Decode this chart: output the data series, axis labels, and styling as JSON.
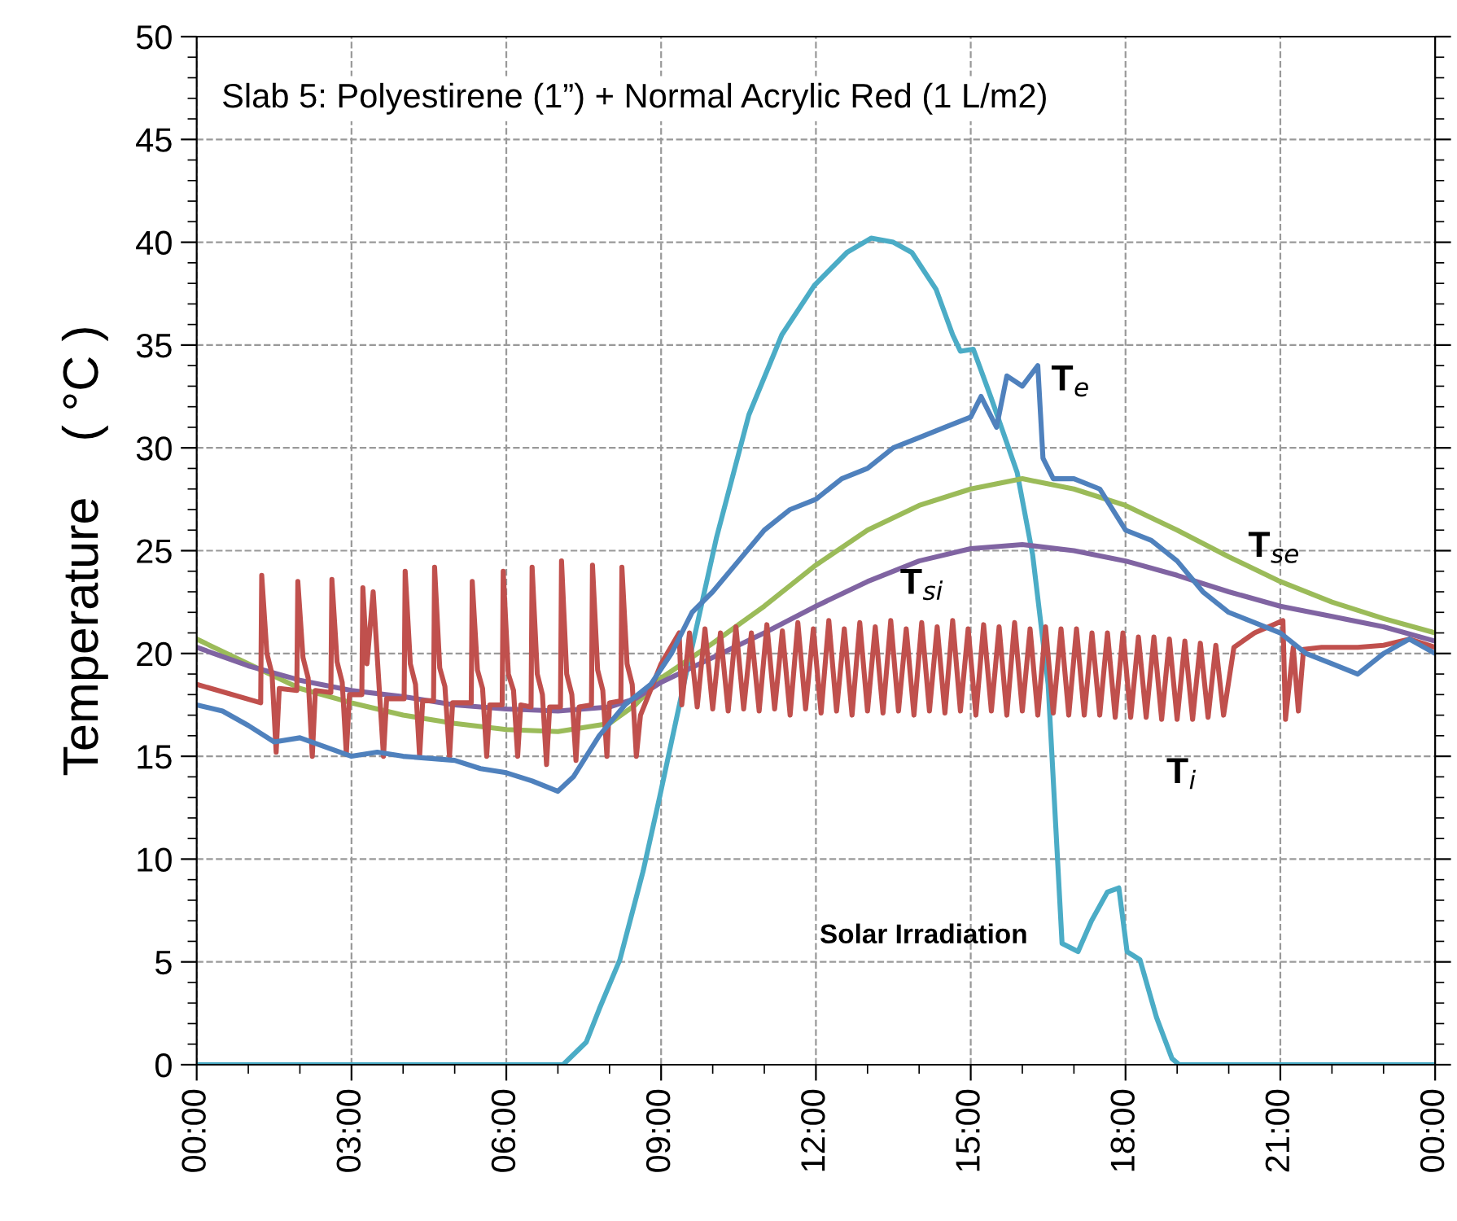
{
  "chart_data": {
    "type": "line",
    "title": "Slab 5: Polyestirene (1”) + Normal Acrylic Red (1 L/m2)",
    "ylabel": "Temperature    ( °C )",
    "xlim": [
      0,
      24
    ],
    "ylim": [
      0,
      50
    ],
    "yticks": [
      0,
      5,
      10,
      15,
      20,
      25,
      30,
      35,
      40,
      45,
      50
    ],
    "xticks": [
      {
        "value": 0,
        "label": "00:00"
      },
      {
        "value": 3,
        "label": "03:00"
      },
      {
        "value": 6,
        "label": "06:00"
      },
      {
        "value": 9,
        "label": "09:00"
      },
      {
        "value": 12,
        "label": "12:00"
      },
      {
        "value": 15,
        "label": "15:00"
      },
      {
        "value": 18,
        "label": "18:00"
      },
      {
        "value": 21,
        "label": "21:00"
      },
      {
        "value": 24,
        "label": "00:00"
      }
    ],
    "grid": true,
    "legend": false,
    "marker": "none",
    "line_style": "solid",
    "series": [
      {
        "color": "#4bacc6",
        "x": [
          0,
          7.1,
          7.55,
          7.8,
          8.2,
          8.65,
          8.97,
          9.44,
          10.07,
          10.7,
          11.34,
          11.97,
          12.6,
          13.07,
          13.5,
          13.86,
          14.33,
          14.65,
          14.8,
          15.05,
          15.4,
          15.9,
          16.2,
          16.5,
          16.77,
          17.08,
          17.34,
          17.65,
          17.87,
          18.03,
          18.28,
          18.6,
          18.9,
          19.04,
          24
        ],
        "values": [
          0,
          0,
          1.1,
          2.7,
          5.1,
          9.4,
          13.0,
          18.5,
          25.6,
          31.6,
          35.5,
          37.9,
          39.5,
          40.2,
          40.0,
          39.5,
          37.7,
          35.5,
          34.7,
          34.8,
          32.4,
          28.8,
          24.8,
          18.5,
          5.9,
          5.5,
          7.0,
          8.4,
          8.6,
          5.5,
          5.1,
          2.3,
          0.3,
          0,
          0
        ]
      },
      {
        "color": "#9bbb59",
        "x": [
          0,
          1,
          2,
          3,
          4,
          5,
          6,
          7,
          8,
          8.5,
          9,
          10,
          11,
          12,
          13,
          14,
          15,
          16,
          17,
          18,
          19,
          20,
          21,
          22,
          23,
          24
        ],
        "values": [
          20.7,
          19.5,
          18.3,
          17.6,
          17.0,
          16.6,
          16.3,
          16.2,
          16.6,
          17.5,
          18.8,
          20.5,
          22.3,
          24.3,
          26.0,
          27.2,
          28.0,
          28.5,
          28.0,
          27.2,
          26.0,
          24.7,
          23.5,
          22.5,
          21.7,
          21.0
        ]
      },
      {
        "color": "#8064a2",
        "x": [
          0,
          1,
          2,
          3,
          4,
          5,
          6,
          7,
          8,
          8.5,
          9,
          10,
          11,
          12,
          13,
          14,
          15,
          16,
          17,
          18,
          19,
          20,
          21,
          22,
          23,
          24
        ],
        "values": [
          20.3,
          19.4,
          18.7,
          18.2,
          17.9,
          17.5,
          17.3,
          17.2,
          17.4,
          17.8,
          18.6,
          19.8,
          21.0,
          22.3,
          23.5,
          24.5,
          25.1,
          25.3,
          25.0,
          24.5,
          23.8,
          23.0,
          22.3,
          21.8,
          21.3,
          20.6
        ]
      },
      {
        "color": "#c0504d",
        "x": [
          0,
          1.24,
          1.26,
          1.36,
          1.46,
          1.54,
          1.6,
          1.94,
          1.96,
          2.06,
          2.16,
          2.24,
          2.3,
          2.6,
          2.62,
          2.72,
          2.82,
          2.9,
          2.96,
          3.2,
          3.22,
          3.3,
          3.42,
          3.52,
          3.62,
          3.68,
          4.02,
          4.04,
          4.14,
          4.24,
          4.32,
          4.38,
          4.59,
          4.61,
          4.71,
          4.81,
          4.9,
          4.96,
          5.32,
          5.34,
          5.44,
          5.54,
          5.62,
          5.68,
          5.92,
          5.94,
          6.04,
          6.14,
          6.22,
          6.28,
          6.48,
          6.5,
          6.6,
          6.7,
          6.78,
          6.84,
          7.05,
          7.07,
          7.17,
          7.27,
          7.35,
          7.41,
          7.65,
          7.67,
          7.77,
          7.87,
          7.95,
          8.0,
          8.22,
          8.24,
          8.34,
          8.44,
          8.52,
          8.6,
          9.0,
          9.35,
          9.4,
          9.55,
          9.7,
          9.85,
          10.0,
          10.15,
          10.3,
          10.45,
          10.6,
          10.75,
          10.9,
          11.05,
          11.2,
          11.35,
          11.5,
          11.65,
          11.8,
          11.95,
          12.1,
          12.25,
          12.4,
          12.55,
          12.7,
          12.85,
          13.0,
          13.15,
          13.3,
          13.45,
          13.6,
          13.75,
          13.9,
          14.05,
          14.2,
          14.35,
          14.5,
          14.65,
          14.8,
          14.95,
          15.1,
          15.25,
          15.4,
          15.55,
          15.7,
          15.85,
          16.0,
          16.15,
          16.3,
          16.45,
          16.6,
          16.75,
          16.9,
          17.05,
          17.2,
          17.35,
          17.5,
          17.65,
          17.8,
          17.95,
          18.1,
          18.25,
          18.4,
          18.55,
          18.7,
          18.85,
          19.0,
          19.15,
          19.3,
          19.45,
          19.6,
          19.75,
          19.9,
          20.1,
          20.5,
          21.05,
          21.1,
          21.25,
          21.35,
          21.45,
          21.8,
          22.5,
          23.0,
          23.5,
          24.0
        ],
        "values": [
          18.5,
          17.6,
          23.8,
          20,
          19,
          15.2,
          18.3,
          18.2,
          23.5,
          19.8,
          18.8,
          15.0,
          18.2,
          18.1,
          23.6,
          19.6,
          18.6,
          15.1,
          18.0,
          18.0,
          23.2,
          19.5,
          23.0,
          19.0,
          15.0,
          17.8,
          17.8,
          24.0,
          19.5,
          18.5,
          15.0,
          17.7,
          17.7,
          24.2,
          19.3,
          18.4,
          15.0,
          17.6,
          17.6,
          23.5,
          19.2,
          18.3,
          15.0,
          17.5,
          17.5,
          24.0,
          19.0,
          18.2,
          15.0,
          17.5,
          17.4,
          24.2,
          19.0,
          18.0,
          14.6,
          17.4,
          17.4,
          24.5,
          19.0,
          18.0,
          14.8,
          17.4,
          17.5,
          24.3,
          19.2,
          18.2,
          15.0,
          17.6,
          17.7,
          24.2,
          19.5,
          18.5,
          15.0,
          17.0,
          19.5,
          21.0,
          17.5,
          21.0,
          17.4,
          21.2,
          17.3,
          21.0,
          17.2,
          21.3,
          17.3,
          21.0,
          17.2,
          21.4,
          17.3,
          21.1,
          17.0,
          21.5,
          17.3,
          21.2,
          17.1,
          21.6,
          17.2,
          21.2,
          17.0,
          21.5,
          17.2,
          21.3,
          17.1,
          21.6,
          17.2,
          21.2,
          17.0,
          21.5,
          17.2,
          21.3,
          17.1,
          21.6,
          17.2,
          21.2,
          17.0,
          21.4,
          17.2,
          21.3,
          17.0,
          21.5,
          17.2,
          21.2,
          17.0,
          21.3,
          17.1,
          21.2,
          17.0,
          21.2,
          17.0,
          21.0,
          17.0,
          21.0,
          16.9,
          21.0,
          16.9,
          20.8,
          16.9,
          20.8,
          16.8,
          20.7,
          16.8,
          20.6,
          16.8,
          20.5,
          16.9,
          20.4,
          17.0,
          20.3,
          21.0,
          21.6,
          16.8,
          20.3,
          17.2,
          20.2,
          20.3,
          20.3,
          20.4,
          20.7,
          20.3
        ]
      },
      {
        "color": "#4f81bd",
        "x": [
          0,
          0.5,
          1,
          1.5,
          2,
          3,
          3.5,
          4,
          5,
          5.5,
          6,
          6.5,
          7,
          7.3,
          7.8,
          8.3,
          8.8,
          9.2,
          9.6,
          10,
          10.5,
          11,
          11.5,
          12,
          12.5,
          13,
          13.5,
          14,
          14.5,
          15,
          15.2,
          15.5,
          15.7,
          16,
          16.3,
          16.4,
          16.6,
          17,
          17.5,
          18,
          18.5,
          19,
          19.5,
          20,
          20.5,
          21,
          21.5,
          22,
          22.5,
          23,
          23.5,
          24
        ],
        "values": [
          17.5,
          17.2,
          16.5,
          15.7,
          15.9,
          15.0,
          15.2,
          15.0,
          14.8,
          14.4,
          14.2,
          13.8,
          13.3,
          14.0,
          16.0,
          17.5,
          18.5,
          20.0,
          22.0,
          23.0,
          24.5,
          26.0,
          27.0,
          27.5,
          28.5,
          29.0,
          30.0,
          30.5,
          31.0,
          31.5,
          32.5,
          31.0,
          33.5,
          33.0,
          34.0,
          29.5,
          28.5,
          28.5,
          28.0,
          26.0,
          25.5,
          24.5,
          23.0,
          22.0,
          21.5,
          21.0,
          20.0,
          19.5,
          19.0,
          20.0,
          20.7,
          20.0
        ]
      }
    ],
    "annotations": [
      "T$_{e}$",
      "T$_{se}$",
      "T$_{si}$",
      "T$_{i}$",
      "Solar Irradiation"
    ]
  }
}
